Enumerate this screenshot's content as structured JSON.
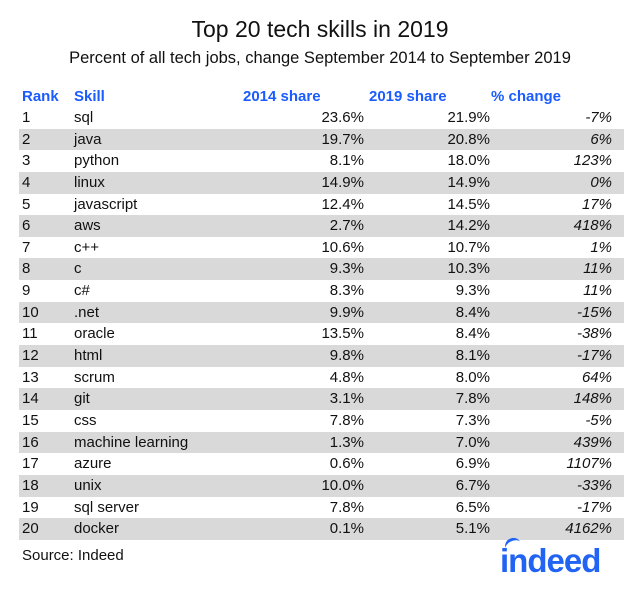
{
  "chart_data": {
    "type": "table",
    "title": "Top 20 tech skills in 2019",
    "subtitle": "Percent of all tech jobs, change September 2014 to September 2019",
    "columns": [
      "Rank",
      "Skill",
      "2014 share",
      "2019 share",
      "% change"
    ],
    "rows": [
      [
        "1",
        "sql",
        "23.6%",
        "21.9%",
        "-7%"
      ],
      [
        "2",
        "java",
        "19.7%",
        "20.8%",
        "6%"
      ],
      [
        "3",
        "python",
        "8.1%",
        "18.0%",
        "123%"
      ],
      [
        "4",
        "linux",
        "14.9%",
        "14.9%",
        "0%"
      ],
      [
        "5",
        "javascript",
        "12.4%",
        "14.5%",
        "17%"
      ],
      [
        "6",
        "aws",
        "2.7%",
        "14.2%",
        "418%"
      ],
      [
        "7",
        "c++",
        "10.6%",
        "10.7%",
        "1%"
      ],
      [
        "8",
        "c",
        "9.3%",
        "10.3%",
        "11%"
      ],
      [
        "9",
        "c#",
        "8.3%",
        "9.3%",
        "11%"
      ],
      [
        "10",
        ".net",
        "9.9%",
        "8.4%",
        "-15%"
      ],
      [
        "11",
        "oracle",
        "13.5%",
        "8.4%",
        "-38%"
      ],
      [
        "12",
        "html",
        "9.8%",
        "8.1%",
        "-17%"
      ],
      [
        "13",
        "scrum",
        "4.8%",
        "8.0%",
        "64%"
      ],
      [
        "14",
        "git",
        "3.1%",
        "7.8%",
        "148%"
      ],
      [
        "15",
        "css",
        "7.8%",
        "7.3%",
        "-5%"
      ],
      [
        "16",
        "machine learning",
        "1.3%",
        "7.0%",
        "439%"
      ],
      [
        "17",
        "azure",
        "0.6%",
        "6.9%",
        "1107%"
      ],
      [
        "18",
        "unix",
        "10.0%",
        "6.7%",
        "-33%"
      ],
      [
        "19",
        "sql server",
        "7.8%",
        "6.5%",
        "-17%"
      ],
      [
        "20",
        "docker",
        "0.1%",
        "5.1%",
        "4162%"
      ]
    ],
    "source": "Source: Indeed",
    "logo": "indeed",
    "colors": {
      "header": "#1a5cff",
      "alt_row": "#d9d9d9",
      "logo": "#2164f3"
    }
  }
}
